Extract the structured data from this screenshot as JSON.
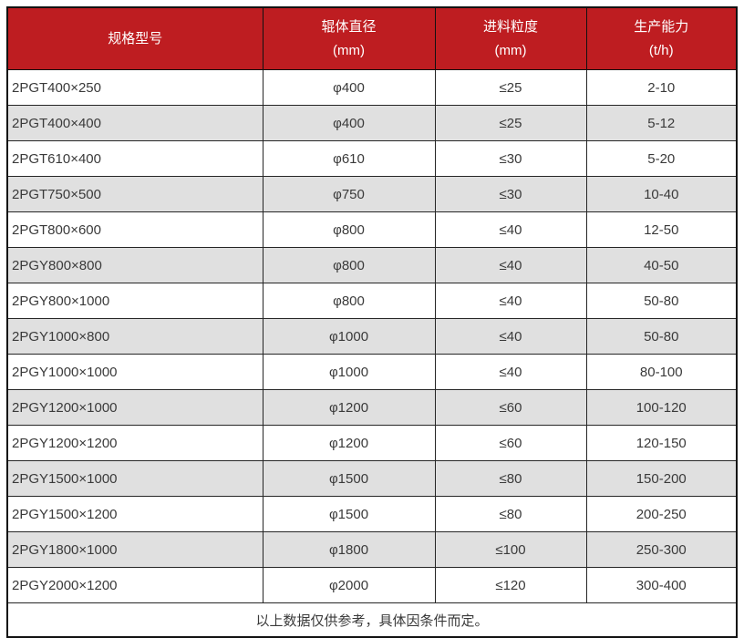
{
  "table": {
    "columns": [
      {
        "label": "规格型号",
        "unit": ""
      },
      {
        "label": "辊体直径",
        "unit": "(mm)"
      },
      {
        "label": "进料粒度",
        "unit": "(mm)"
      },
      {
        "label": "生产能力",
        "unit": "(t/h)"
      }
    ],
    "rows": [
      [
        "2PGT400×250",
        "φ400",
        "≤25",
        "2-10"
      ],
      [
        "2PGT400×400",
        "φ400",
        "≤25",
        "5-12"
      ],
      [
        "2PGT610×400",
        "φ610",
        "≤30",
        "5-20"
      ],
      [
        "2PGT750×500",
        "φ750",
        "≤30",
        "10-40"
      ],
      [
        "2PGT800×600",
        "φ800",
        "≤40",
        "12-50"
      ],
      [
        "2PGY800×800",
        "φ800",
        "≤40",
        "40-50"
      ],
      [
        "2PGY800×1000",
        "φ800",
        "≤40",
        "50-80"
      ],
      [
        "2PGY1000×800",
        "φ1000",
        "≤40",
        "50-80"
      ],
      [
        "2PGY1000×1000",
        "φ1000",
        "≤40",
        "80-100"
      ],
      [
        "2PGY1200×1000",
        "φ1200",
        "≤60",
        "100-120"
      ],
      [
        "2PGY1200×1200",
        "φ1200",
        "≤60",
        "120-150"
      ],
      [
        "2PGY1500×1000",
        "φ1500",
        "≤80",
        "150-200"
      ],
      [
        "2PGY1500×1200",
        "φ1500",
        "≤80",
        "200-250"
      ],
      [
        "2PGY1800×1000",
        "φ1800",
        "≤100",
        "250-300"
      ],
      [
        "2PGY2000×1200",
        "φ2000",
        "≤120",
        "300-400"
      ]
    ],
    "footer_note": "以上数据仅供参考，具体因条件而定。"
  },
  "colors": {
    "header_bg": "#be1d21",
    "header_text": "#ffffff",
    "row_alt_bg": "#e0e0e0",
    "border": "#262626",
    "body_text": "#3a3a3a"
  }
}
